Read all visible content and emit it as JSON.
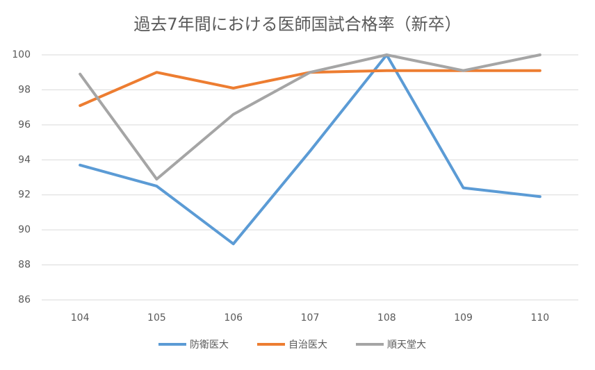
{
  "chart_data": {
    "type": "line",
    "title": "過去7年間における医師国試合格率（新卒）",
    "categories": [
      "104",
      "105",
      "106",
      "107",
      "108",
      "109",
      "110"
    ],
    "series": [
      {
        "name": "防衛医大",
        "color": "#5b9bd5",
        "values": [
          93.7,
          92.5,
          89.2,
          94.5,
          100,
          92.4,
          91.9
        ]
      },
      {
        "name": "自治医大",
        "color": "#ed7d31",
        "values": [
          97.1,
          99.0,
          98.1,
          99.0,
          99.1,
          99.1,
          99.1
        ]
      },
      {
        "name": "順天堂大",
        "color": "#a5a5a5",
        "values": [
          98.9,
          92.9,
          96.6,
          99.0,
          100,
          99.1,
          100
        ]
      }
    ],
    "ylim": [
      86,
      100
    ],
    "yticks": [
      86,
      88,
      90,
      92,
      94,
      96,
      98,
      100
    ],
    "grid": true,
    "legend": "bottom"
  }
}
